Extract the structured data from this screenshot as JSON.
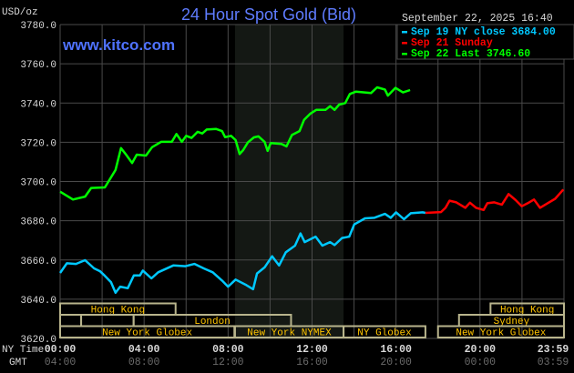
{
  "chart_data": {
    "type": "line",
    "title": "24 Hour Spot Gold (Bid)",
    "unit_label": "USD/oz",
    "watermark": "www.kitco.com",
    "timestamp": "September 22, 2025 16:40",
    "ylim": [
      3620,
      3780
    ],
    "yticks": [
      "3780.0",
      "3760.0",
      "3740.0",
      "3720.0",
      "3700.0",
      "3680.0",
      "3660.0",
      "3640.0",
      "3620.0"
    ],
    "ytick_values": [
      3780,
      3760,
      3740,
      3720,
      3700,
      3680,
      3660,
      3640,
      3620
    ],
    "xlim_hours": [
      0,
      24
    ],
    "grid": true,
    "legend_placement": "top-right",
    "x_axis": {
      "ny_label": "NY Time",
      "gmt_label": "GMT",
      "ticks": [
        {
          "hour": 0,
          "ny": "00:00",
          "gmt": "04:00"
        },
        {
          "hour": 4,
          "ny": "04:00",
          "gmt": "08:00"
        },
        {
          "hour": 8,
          "ny": "08:00",
          "gmt": "12:00"
        },
        {
          "hour": 12,
          "ny": "12:00",
          "gmt": "16:00"
        },
        {
          "hour": 16,
          "ny": "16:00",
          "gmt": "20:00"
        },
        {
          "hour": 20,
          "ny": "20:00",
          "gmt": "00:00"
        },
        {
          "hour": 23.983,
          "ny": "23:59",
          "gmt": "03:59"
        }
      ]
    },
    "highlight_hours": [
      8.33,
      13.5
    ],
    "colors": {
      "background": "#000000",
      "grid": "#4a4a4a",
      "highlight": "#141814",
      "title": "#5f7cff",
      "axis_text": "#d8d8d8",
      "gmt_text": "#6a6a6a",
      "session_border": "#b8b48c",
      "session_text": "#ffc400"
    },
    "series": [
      {
        "name": "Sep 19 NY close 3684.00",
        "color": "#00c8ff",
        "points": [
          [
            0,
            3653.4
          ],
          [
            0.32,
            3658.3
          ],
          [
            0.75,
            3658
          ],
          [
            1.19,
            3659.9
          ],
          [
            1.62,
            3655.7
          ],
          [
            1.91,
            3654.2
          ],
          [
            2.13,
            3651.9
          ],
          [
            2.42,
            3648.7
          ],
          [
            2.64,
            3643.3
          ],
          [
            2.86,
            3646.4
          ],
          [
            3.22,
            3645.6
          ],
          [
            3.51,
            3652.1
          ],
          [
            3.8,
            3652.1
          ],
          [
            3.94,
            3654.6
          ],
          [
            4.35,
            3650.6
          ],
          [
            4.67,
            3653.7
          ],
          [
            5.39,
            3657.2
          ],
          [
            5.97,
            3656.8
          ],
          [
            6.4,
            3658
          ],
          [
            6.84,
            3655.7
          ],
          [
            7.27,
            3653.7
          ],
          [
            7.71,
            3649.5
          ],
          [
            8.0,
            3646.4
          ],
          [
            8.36,
            3650
          ],
          [
            8.87,
            3647.2
          ],
          [
            9.19,
            3645.1
          ],
          [
            9.38,
            3653.1
          ],
          [
            9.74,
            3656.2
          ],
          [
            10.1,
            3661.9
          ],
          [
            10.43,
            3657.2
          ],
          [
            10.75,
            3663.9
          ],
          [
            11.19,
            3667.3
          ],
          [
            11.45,
            3673.5
          ],
          [
            11.65,
            3669.1
          ],
          [
            12.17,
            3671.9
          ],
          [
            12.49,
            3667.3
          ],
          [
            12.86,
            3669.1
          ],
          [
            13.07,
            3667.6
          ],
          [
            13.43,
            3671.2
          ],
          [
            13.77,
            3671.9
          ],
          [
            14.01,
            3678.1
          ],
          [
            14.52,
            3681.2
          ],
          [
            14.96,
            3681.5
          ],
          [
            15.47,
            3683.5
          ],
          [
            15.75,
            3681.5
          ],
          [
            16.0,
            3684.3
          ],
          [
            16.38,
            3680.8
          ],
          [
            16.7,
            3683.8
          ],
          [
            17.27,
            3684.3
          ],
          [
            17.4,
            3684
          ]
        ]
      },
      {
        "name": "Sep 21 Sunday",
        "color": "#ff0000",
        "points": [
          [
            17.4,
            3684
          ],
          [
            18.14,
            3684.4
          ],
          [
            18.36,
            3686.6
          ],
          [
            18.55,
            3690.2
          ],
          [
            18.87,
            3689.4
          ],
          [
            19.3,
            3686.6
          ],
          [
            19.52,
            3689.2
          ],
          [
            19.81,
            3686.6
          ],
          [
            20.17,
            3685.5
          ],
          [
            20.35,
            3688.9
          ],
          [
            20.68,
            3689.4
          ],
          [
            21.04,
            3688.2
          ],
          [
            21.36,
            3693.6
          ],
          [
            21.7,
            3690.5
          ],
          [
            21.99,
            3687.4
          ],
          [
            22.27,
            3688.9
          ],
          [
            22.57,
            3690.8
          ],
          [
            22.86,
            3686.6
          ],
          [
            23.22,
            3688.9
          ],
          [
            23.58,
            3691.2
          ],
          [
            23.97,
            3695.9
          ]
        ]
      },
      {
        "name": "Sep 22 Last 3746.60",
        "color": "#00ff00",
        "points": [
          [
            0,
            3694.8
          ],
          [
            0.61,
            3690.8
          ],
          [
            1.19,
            3692.3
          ],
          [
            1.48,
            3696.7
          ],
          [
            2.13,
            3697
          ],
          [
            2.64,
            3705.9
          ],
          [
            2.9,
            3717
          ],
          [
            3.14,
            3713.7
          ],
          [
            3.43,
            3709.4
          ],
          [
            3.65,
            3713.7
          ],
          [
            4.09,
            3713.2
          ],
          [
            4.38,
            3717.5
          ],
          [
            4.81,
            3720.2
          ],
          [
            5.32,
            3720.2
          ],
          [
            5.54,
            3724.2
          ],
          [
            5.8,
            3720.2
          ],
          [
            6.0,
            3723.3
          ],
          [
            6.26,
            3722.2
          ],
          [
            6.55,
            3725.3
          ],
          [
            6.77,
            3724.5
          ],
          [
            6.98,
            3726.5
          ],
          [
            7.42,
            3726.8
          ],
          [
            7.71,
            3725.7
          ],
          [
            7.86,
            3722.6
          ],
          [
            8.14,
            3723.3
          ],
          [
            8.36,
            3721.1
          ],
          [
            8.55,
            3714
          ],
          [
            8.72,
            3716
          ],
          [
            8.94,
            3719.9
          ],
          [
            9.23,
            3722.5
          ],
          [
            9.45,
            3723
          ],
          [
            9.74,
            3720.2
          ],
          [
            9.88,
            3715.6
          ],
          [
            10.03,
            3719.6
          ],
          [
            10.54,
            3719.1
          ],
          [
            10.78,
            3717.9
          ],
          [
            11.04,
            3723.7
          ],
          [
            11.4,
            3725.7
          ],
          [
            11.62,
            3731.4
          ],
          [
            11.91,
            3734.5
          ],
          [
            12.2,
            3736.5
          ],
          [
            12.64,
            3736.5
          ],
          [
            12.86,
            3738.4
          ],
          [
            13.07,
            3736.5
          ],
          [
            13.29,
            3739.2
          ],
          [
            13.58,
            3740
          ],
          [
            13.8,
            3744.6
          ],
          [
            14.09,
            3745.8
          ],
          [
            14.81,
            3745.1
          ],
          [
            15.1,
            3748
          ],
          [
            15.47,
            3746.9
          ],
          [
            15.61,
            3743.8
          ],
          [
            15.97,
            3747.7
          ],
          [
            16.33,
            3745.4
          ],
          [
            16.67,
            3746.6
          ]
        ]
      }
    ],
    "sessions": [
      {
        "row": 0,
        "start": 0,
        "end": 5.5,
        "label": "Hong Kong"
      },
      {
        "row": 0,
        "start": 20.5,
        "end": 24,
        "label": "Hong Kong"
      },
      {
        "row": 1,
        "start": 0,
        "end": 1,
        "label": ""
      },
      {
        "row": 1,
        "start": 1,
        "end": 3.5,
        "label": ""
      },
      {
        "row": 1,
        "start": 3.5,
        "end": 11,
        "label": "London"
      },
      {
        "row": 1,
        "start": 19,
        "end": 24,
        "label": "Sydney"
      },
      {
        "row": 2,
        "start": 0,
        "end": 8.3,
        "label": "New York Globex"
      },
      {
        "row": 2,
        "start": 8.33,
        "end": 13.5,
        "label": "New York NYMEX"
      },
      {
        "row": 2,
        "start": 13.5,
        "end": 17.4,
        "label": "NY Globex"
      },
      {
        "row": 2,
        "start": 18,
        "end": 24,
        "label": "New York Globex"
      }
    ]
  }
}
